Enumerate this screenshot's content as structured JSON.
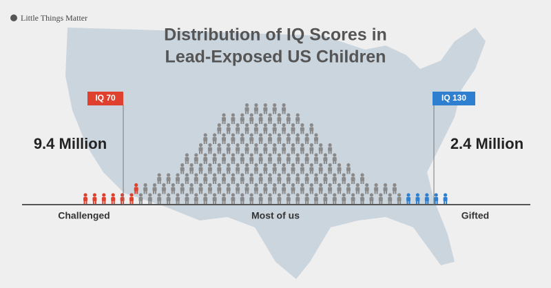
{
  "brand": "Little Things Matter",
  "title": {
    "line1": "Distribution of IQ Scores in",
    "line2": "Lead-Exposed US Children"
  },
  "markers": {
    "low": {
      "label": "IQ 70",
      "count": "9.4 Million"
    },
    "high": {
      "label": "IQ 130",
      "count": "2.4 Million"
    }
  },
  "groups": {
    "low": "Challenged",
    "middle": "Most of us",
    "high": "Gifted"
  }
}
